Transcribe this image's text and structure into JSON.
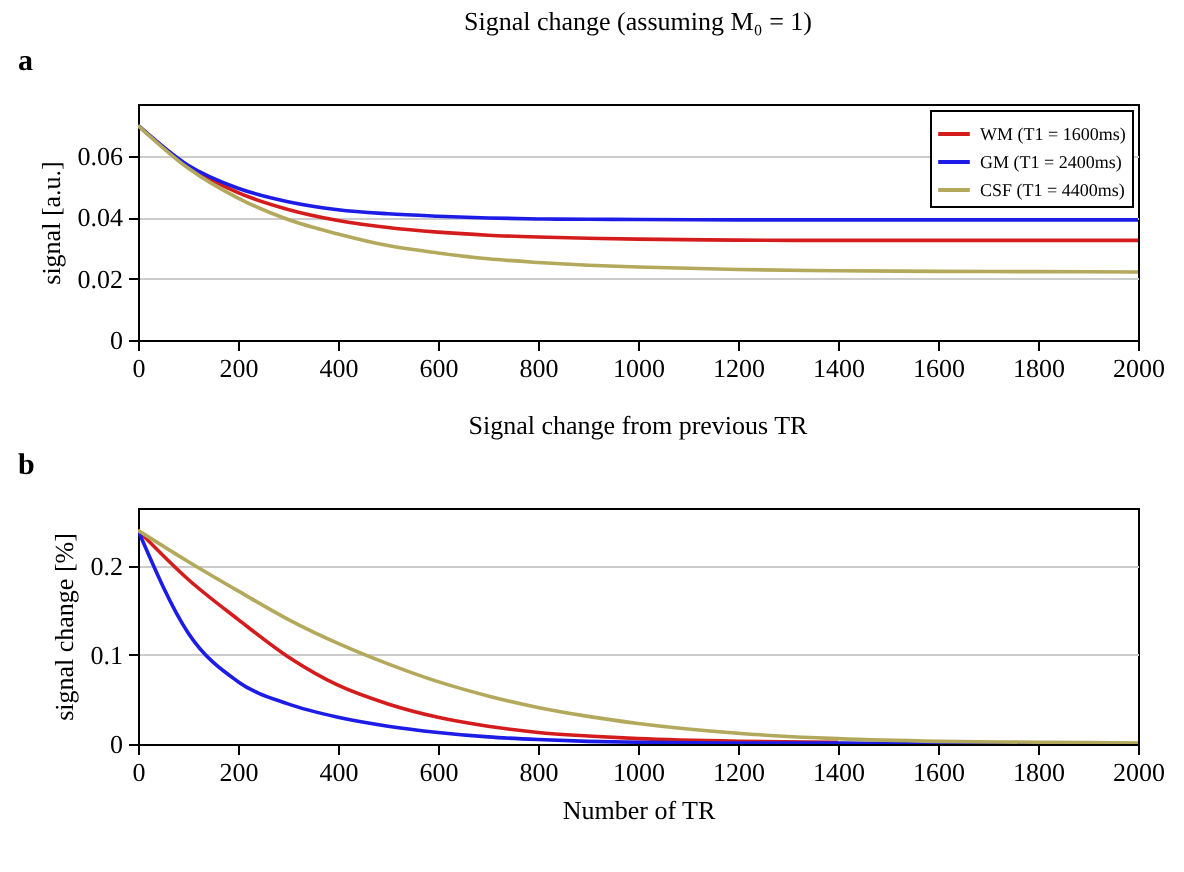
{
  "chart_data": [
    {
      "type": "line",
      "title": "Signal change (assuming M₀ = 1)",
      "ylabel": "signal [a.u.]",
      "annotations": [
        "a"
      ],
      "x": [
        0,
        100,
        200,
        300,
        400,
        500,
        600,
        700,
        800,
        900,
        1000,
        1200,
        1400,
        1600,
        1800,
        2000
      ],
      "xlim": [
        0,
        2000
      ],
      "xticks": [
        0,
        200,
        400,
        600,
        800,
        1000,
        1200,
        1400,
        1600,
        1800,
        2000
      ],
      "ylim": [
        0,
        0.077
      ],
      "yticks": [
        0,
        0.02,
        0.04,
        0.06
      ],
      "grid": "y",
      "legend": "top right",
      "series": [
        {
          "name": "WM (T1 = 1600ms)",
          "color": "#d41c1c",
          "values": [
            0.07,
            0.0567,
            0.0481,
            0.0426,
            0.039,
            0.0367,
            0.0352,
            0.0342,
            0.0336,
            0.0332,
            0.0329,
            0.0326,
            0.0325,
            0.0325,
            0.0325,
            0.0325
          ]
        },
        {
          "name": "GM (T1 = 2400ms)",
          "color": "#1c1ce6",
          "values": [
            0.07,
            0.057,
            0.0495,
            0.0451,
            0.0425,
            0.0412,
            0.0404,
            0.0398,
            0.0395,
            0.0394,
            0.0393,
            0.0392,
            0.0392,
            0.0392,
            0.0392,
            0.0392
          ]
        },
        {
          "name": "CSF (T1 = 4400ms)",
          "color": "#b3a95c",
          "values": [
            0.07,
            0.0561,
            0.0463,
            0.0393,
            0.0346,
            0.0308,
            0.0284,
            0.0265,
            0.0253,
            0.0244,
            0.0238,
            0.023,
            0.0226,
            0.0224,
            0.0223,
            0.0222
          ]
        }
      ]
    },
    {
      "type": "line",
      "title": "Signal change from previous TR",
      "xlabel": "Number of TR",
      "ylabel": "signal change [%]",
      "annotations": [
        "b"
      ],
      "x": [
        0,
        100,
        200,
        300,
        400,
        500,
        600,
        700,
        800,
        900,
        1000,
        1200,
        1400,
        1600,
        1800,
        2000
      ],
      "xlim": [
        0,
        2000
      ],
      "xticks": [
        0,
        200,
        400,
        600,
        800,
        1000,
        1200,
        1400,
        1600,
        1800,
        2000
      ],
      "ylim": [
        0,
        0.265
      ],
      "yticks": [
        0,
        0.1,
        0.2
      ],
      "grid": "y",
      "legend": "top right",
      "series": [
        {
          "name": "WM (T1 = 1600ms)",
          "color": "#d41c1c",
          "values": [
            0.24,
            0.185,
            0.14,
            0.098,
            0.066,
            0.045,
            0.03,
            0.02,
            0.013,
            0.009,
            0.006,
            0.003,
            0.002,
            null,
            null,
            null
          ]
        },
        {
          "name": "GM (T1 = 2400ms)",
          "color": "#1c1ce6",
          "values": [
            0.24,
            0.125,
            0.07,
            0.045,
            0.03,
            0.02,
            0.013,
            0.008,
            0.005,
            0.003,
            0.002,
            0.001,
            0.001,
            0,
            0,
            0
          ]
        },
        {
          "name": "CSF (T1 = 4400ms)",
          "color": "#b3a95c",
          "values": [
            0.24,
            0.205,
            0.172,
            0.14,
            0.113,
            0.09,
            0.07,
            0.054,
            0.041,
            0.031,
            0.023,
            0.012,
            0.006,
            0.003,
            0.002,
            0.001
          ]
        }
      ]
    }
  ]
}
